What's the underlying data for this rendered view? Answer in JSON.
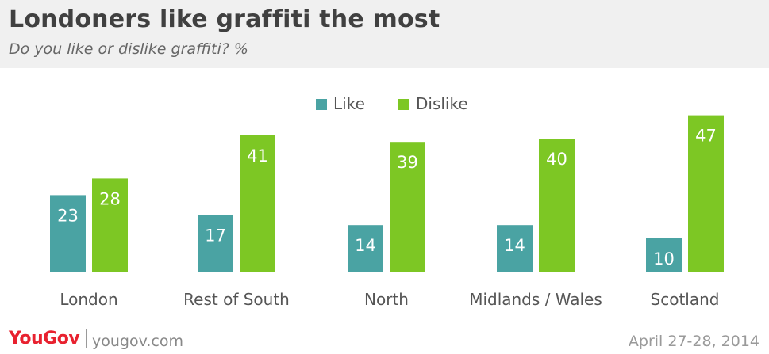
{
  "header": {
    "title": "Londoners like graffiti the most",
    "subtitle": "Do you like or dislike graffiti? %"
  },
  "legend": {
    "like": "Like",
    "dislike": "Dislike"
  },
  "colors": {
    "like": "#4aa3a3",
    "dislike": "#7dc724"
  },
  "footer": {
    "logo": "YouGov",
    "site": "yougov.com",
    "date": "April 27-28, 2014"
  },
  "chart_data": {
    "type": "bar",
    "categories": [
      "London",
      "Rest of South",
      "North",
      "Midlands / Wales",
      "Scotland"
    ],
    "series": [
      {
        "name": "Like",
        "values": [
          23,
          17,
          14,
          14,
          10
        ]
      },
      {
        "name": "Dislike",
        "values": [
          28,
          41,
          39,
          40,
          47
        ]
      }
    ],
    "ylim": [
      0,
      50
    ],
    "grid": false,
    "legend_position": "top-center",
    "data_labels": true
  }
}
